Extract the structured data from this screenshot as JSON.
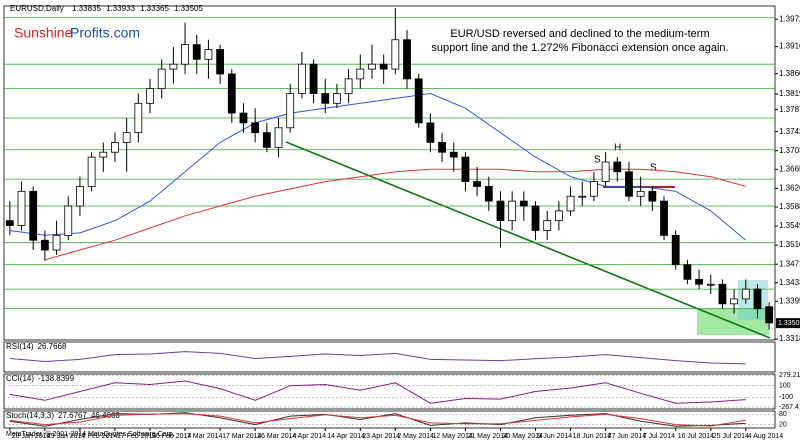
{
  "chart_data": {
    "type": "candlestick",
    "symbol": "EURUSD,Daily",
    "header_quote": [
      1.33835,
      1.33933,
      1.33365,
      1.33505
    ],
    "brand": [
      "Sunshine",
      "Profits.com"
    ],
    "annotation": [
      "EUR/USD reversed and declined to the medium-term",
      "support line and the 1.272% Fibonacci extension once again."
    ],
    "pattern_labels": [
      "S",
      "H",
      "S"
    ],
    "dates": [
      "20 Jan 2014",
      "29 Jan 2014",
      "7 Feb 2014",
      "17 Feb 2014",
      "26 Feb 2014",
      "7 Mar 2014",
      "17 Mar 2014",
      "26 Mar 2014",
      "4 Apr 2014",
      "14 Apr 2014",
      "23 Apr 2014",
      "2 May 2014",
      "12 May 2014",
      "21 May 2014",
      "30 May 2014",
      "9 Jun 2014",
      "18 Jun 2014",
      "27 Jun 2014",
      "7 Jul 2014",
      "16 Jul 2014",
      "25 Jul 2014",
      "4 Aug 2014"
    ],
    "ohlc": [
      [
        1.356,
        1.36,
        1.353,
        1.355
      ],
      [
        1.355,
        1.364,
        1.354,
        1.362
      ],
      [
        1.362,
        1.363,
        1.35,
        1.352
      ],
      [
        1.352,
        1.354,
        1.3478,
        1.35
      ],
      [
        1.35,
        1.356,
        1.349,
        1.353
      ],
      [
        1.353,
        1.361,
        1.352,
        1.359
      ],
      [
        1.359,
        1.365,
        1.357,
        1.363
      ],
      [
        1.363,
        1.37,
        1.362,
        1.369
      ],
      [
        1.369,
        1.372,
        1.366,
        1.37
      ],
      [
        1.37,
        1.374,
        1.368,
        1.372
      ],
      [
        1.372,
        1.377,
        1.366,
        1.374
      ],
      [
        1.374,
        1.382,
        1.372,
        1.38
      ],
      [
        1.38,
        1.385,
        1.378,
        1.383
      ],
      [
        1.383,
        1.389,
        1.381,
        1.387
      ],
      [
        1.387,
        1.3915,
        1.384,
        1.388
      ],
      [
        1.388,
        1.3965,
        1.386,
        1.392
      ],
      [
        1.392,
        1.394,
        1.386,
        1.389
      ],
      [
        1.389,
        1.393,
        1.385,
        1.391
      ],
      [
        1.391,
        1.392,
        1.384,
        1.386
      ],
      [
        1.386,
        1.387,
        1.376,
        1.378
      ],
      [
        1.378,
        1.38,
        1.374,
        1.376
      ],
      [
        1.376,
        1.379,
        1.372,
        1.374
      ],
      [
        1.374,
        1.376,
        1.37,
        1.371
      ],
      [
        1.371,
        1.377,
        1.369,
        1.375
      ],
      [
        1.375,
        1.384,
        1.374,
        1.382
      ],
      [
        1.382,
        1.3905,
        1.381,
        1.388
      ],
      [
        1.388,
        1.389,
        1.38,
        1.382
      ],
      [
        1.382,
        1.385,
        1.378,
        1.38
      ],
      [
        1.38,
        1.384,
        1.379,
        1.382
      ],
      [
        1.382,
        1.387,
        1.38,
        1.385
      ],
      [
        1.385,
        1.39,
        1.383,
        1.387
      ],
      [
        1.387,
        1.392,
        1.385,
        1.388
      ],
      [
        1.388,
        1.39,
        1.384,
        1.387
      ],
      [
        1.387,
        1.3995,
        1.386,
        1.393
      ],
      [
        1.393,
        1.395,
        1.383,
        1.385
      ],
      [
        1.385,
        1.386,
        1.375,
        1.376
      ],
      [
        1.376,
        1.378,
        1.37,
        1.372
      ],
      [
        1.372,
        1.374,
        1.368,
        1.37
      ],
      [
        1.37,
        1.372,
        1.366,
        1.369
      ],
      [
        1.369,
        1.37,
        1.362,
        1.364
      ],
      [
        1.364,
        1.367,
        1.361,
        1.363
      ],
      [
        1.363,
        1.365,
        1.358,
        1.36
      ],
      [
        1.36,
        1.362,
        1.3505,
        1.356
      ],
      [
        1.356,
        1.362,
        1.354,
        1.36
      ],
      [
        1.36,
        1.362,
        1.356,
        1.359
      ],
      [
        1.359,
        1.36,
        1.352,
        1.354
      ],
      [
        1.354,
        1.358,
        1.352,
        1.356
      ],
      [
        1.356,
        1.36,
        1.354,
        1.358
      ],
      [
        1.358,
        1.363,
        1.357,
        1.361
      ],
      [
        1.361,
        1.364,
        1.359,
        1.361
      ],
      [
        1.361,
        1.366,
        1.36,
        1.364
      ],
      [
        1.364,
        1.37,
        1.363,
        1.368
      ],
      [
        1.368,
        1.369,
        1.364,
        1.366
      ],
      [
        1.366,
        1.368,
        1.36,
        1.361
      ],
      [
        1.361,
        1.365,
        1.359,
        1.362
      ],
      [
        1.362,
        1.363,
        1.358,
        1.36
      ],
      [
        1.36,
        1.361,
        1.352,
        1.353
      ],
      [
        1.353,
        1.354,
        1.346,
        1.347
      ],
      [
        1.347,
        1.348,
        1.343,
        1.344
      ],
      [
        1.344,
        1.346,
        1.342,
        1.343
      ],
      [
        1.343,
        1.345,
        1.341,
        1.343
      ],
      [
        1.343,
        1.344,
        1.338,
        1.339
      ],
      [
        1.339,
        1.342,
        1.337,
        1.34
      ],
      [
        1.34,
        1.344,
        1.339,
        1.342
      ],
      [
        1.342,
        1.343,
        1.336,
        1.338
      ],
      [
        1.3384,
        1.3393,
        1.3337,
        1.3351
      ]
    ],
    "series": [
      {
        "color": "#3355dd",
        "values": [
          1.354,
          1.353,
          1.3535,
          1.356,
          1.36,
          1.366,
          1.372,
          1.376,
          1.378,
          1.379,
          1.38,
          1.381,
          1.382,
          1.379,
          1.374,
          1.369,
          1.365,
          1.363,
          1.363,
          1.362,
          1.358,
          1.352
        ]
      },
      {
        "color": "#dd3333",
        "values": [
          null,
          1.348,
          1.35,
          1.352,
          1.3545,
          1.357,
          1.359,
          1.361,
          1.3625,
          1.364,
          1.365,
          1.366,
          1.3665,
          1.3665,
          1.3665,
          1.366,
          1.366,
          1.3665,
          1.3665,
          1.366,
          1.365,
          1.363
        ]
      }
    ],
    "levels": [
      1.3975,
      1.388,
      1.383,
      1.377,
      1.3705,
      1.3645,
      1.359,
      1.3515,
      1.347,
      1.342,
      1.338
    ],
    "level_color": "#33aa33",
    "ylim": [
      1.3316,
      1.3999
    ],
    "yticks": [
      {
        "value": 1.3972,
        "label": "1.39720"
      },
      {
        "value": 1.3916,
        "label": "1.39160"
      },
      {
        "value": 1.38605,
        "label": "1.38605"
      },
      {
        "value": 1.3819,
        "label": "1.38190"
      },
      {
        "value": 1.3787,
        "label": "1.37870"
      },
      {
        "value": 1.3742,
        "label": "1.37420"
      },
      {
        "value": 1.3703,
        "label": "1.37030"
      },
      {
        "value": 1.3665,
        "label": "1.36650"
      },
      {
        "value": 1.3626,
        "label": "1.36260"
      },
      {
        "value": 1.3588,
        "label": "1.35880"
      },
      {
        "value": 1.3549,
        "label": "1.35490"
      },
      {
        "value": 1.351,
        "label": "1.35100"
      },
      {
        "value": 1.3471,
        "label": "1.34710"
      },
      {
        "value": 1.3433,
        "label": "1.34330"
      },
      {
        "value": 1.3395,
        "label": "1.33950"
      },
      {
        "value": 1.3318,
        "label": "1.33180"
      }
    ],
    "indicators": [
      {
        "name": "RSI(14)",
        "readings": [
          26.7668
        ],
        "ylim": [
          0,
          100
        ],
        "yticks": [],
        "series": [
          {
            "color": "#6b3fa0",
            "values": [
              45,
              35,
              42,
              58,
              60,
              68,
              62,
              45,
              52,
              60,
              55,
              62,
              42,
              40,
              38,
              44,
              50,
              58,
              48,
              38,
              30,
              27
            ]
          }
        ]
      },
      {
        "name": "CCI(14)",
        "readings": [
          -138.8399
        ],
        "ylim": [
          -300,
          300
        ],
        "yticks": [
          {
            "value": 279.2156,
            "label": "279.2156"
          },
          100,
          -100,
          {
            "value": -267.411,
            "label": "-267.411"
          }
        ],
        "series": [
          {
            "color": "#8b1a8b",
            "values": [
              -50,
              -150,
              0,
              150,
              120,
              180,
              50,
              -150,
              100,
              120,
              20,
              150,
              -200,
              -120,
              -130,
              0,
              60,
              150,
              -30,
              -200,
              -180,
              -139
            ]
          }
        ]
      },
      {
        "name": "Stoch(14,3,3)",
        "readings": [
          27.6767,
          46.4668
        ],
        "ylim": [
          0,
          100
        ],
        "yticks": [
          80,
          20
        ],
        "series": [
          {
            "color": "#333333",
            "values": [
              40,
              10,
              50,
              85,
              80,
              90,
              60,
              20,
              70,
              80,
              50,
              85,
              15,
              30,
              20,
              60,
              75,
              85,
              40,
              10,
              15,
              28
            ]
          },
          {
            "color": "#dd3333",
            "values": [
              45,
              20,
              35,
              75,
              82,
              85,
              70,
              30,
              55,
              78,
              60,
              75,
              30,
              25,
              25,
              45,
              65,
              80,
              55,
              20,
              12,
              46
            ]
          }
        ]
      }
    ],
    "footer": "MetaTrader, © 2001-2014 MetaQuotes Software Corp."
  }
}
